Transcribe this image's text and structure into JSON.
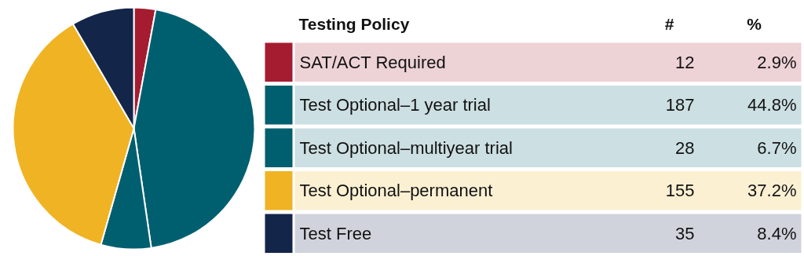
{
  "chart_data": {
    "type": "pie",
    "legend_title": "Testing Policy",
    "categories": [
      "SAT/ACT Required",
      "Test Optional–1 year trial",
      "Test Optional–multiyear trial",
      "Test Optional–permanent",
      "Test Free"
    ],
    "values": [
      2.9,
      44.8,
      6.7,
      37.2,
      8.4
    ],
    "value_labels": [
      "2.9%",
      "44.8%",
      "6.7%",
      "37.2%",
      "8.4%"
    ],
    "colors": [
      "#a51c30",
      "#005f6f",
      "#005f6f",
      "#f0b323",
      "#14254a"
    ],
    "legend": "right",
    "annotations": [
      "#",
      "%",
      "12",
      "187",
      "28",
      "155",
      "35"
    ]
  }
}
